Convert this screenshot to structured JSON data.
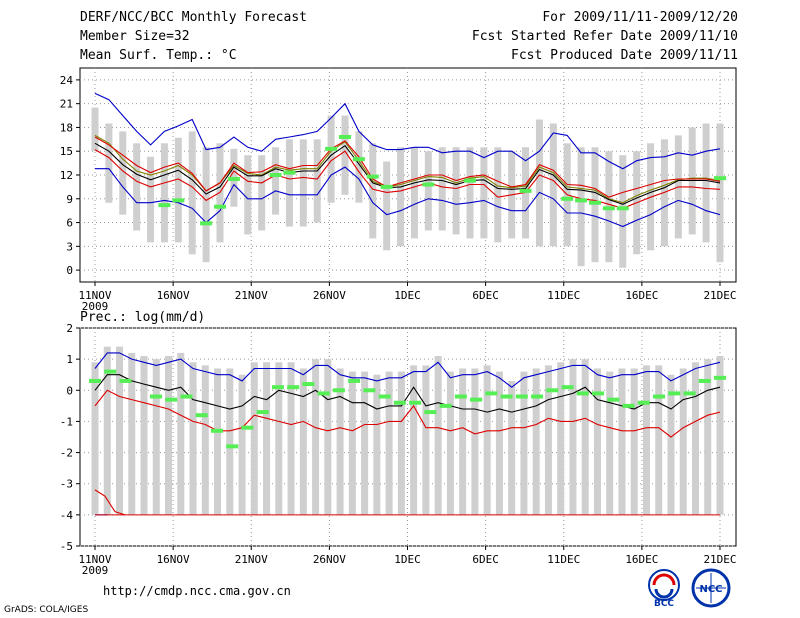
{
  "header": {
    "title": "DERF/NCC/BCC Monthly Forecast",
    "members": "Member Size=32",
    "variable": "Mean Surf. Temp.: °C",
    "period": "For 2009/11/11-2009/12/20",
    "started": "Fcst Started Refer Date 2009/11/10",
    "produced": "Fcst Produced Date 2009/11/11"
  },
  "footer": {
    "url": "http://cmdp.ncc.cma.gov.cn",
    "grads": "GrADS: COLA/IGES",
    "bcc_logo": "BCC",
    "ncc_logo": "NCC"
  },
  "colors": {
    "envelope": "#0000cc",
    "spread": "#dd0000",
    "mean": "#000000",
    "member_box": "#cfcfcf",
    "obs": "#55ee55",
    "olive": "#808000"
  },
  "chart_data": [
    {
      "type": "line",
      "title": "Mean Surf. Temp.: °C",
      "x_labels": [
        "11NOV",
        "16NOV",
        "21NOV",
        "26NOV",
        "1DEC",
        "6DEC",
        "11DEC",
        "16DEC",
        "21DEC"
      ],
      "x_year": "2009",
      "days": 40,
      "ylim": [
        -1.5,
        25.5
      ],
      "yticks": [
        "0",
        "3",
        "6",
        "9",
        "12",
        "15",
        "18",
        "21",
        "24"
      ],
      "series": [
        {
          "name": "max",
          "values": [
            22.3,
            21.5,
            19.5,
            17.5,
            15.8,
            17.5,
            18.2,
            19,
            15.2,
            15.5,
            16.8,
            15.5,
            15,
            16.5,
            16.8,
            17.1,
            17.5,
            19.2,
            21,
            17.5,
            15.8,
            15.2,
            15.2,
            15.5,
            15.5,
            14.8,
            15,
            15,
            14.2,
            15,
            15,
            13.8,
            15,
            17.3,
            17,
            14.8,
            14.8,
            13.7,
            12.8,
            13.8,
            14.2,
            14.3,
            14.8,
            14.5,
            15,
            15.3
          ]
        },
        {
          "name": "hi",
          "values": [
            16.8,
            15.8,
            14.5,
            13.2,
            12.3,
            13,
            13.5,
            12.2,
            10,
            11,
            13.5,
            12.3,
            12.4,
            13.3,
            12.8,
            13.2,
            13.2,
            15.3,
            16.3,
            14.3,
            11.5,
            10.5,
            11,
            11.5,
            12,
            12,
            11.3,
            11.8,
            12,
            11.2,
            10.5,
            10.8,
            13.3,
            12.6,
            10.8,
            10.7,
            10.3,
            9.2,
            9.8,
            10.3,
            10.8,
            11.3,
            11.5,
            11.5,
            11.5,
            11.2
          ]
        },
        {
          "name": "mean",
          "values": [
            16,
            15,
            13.3,
            12.1,
            11.4,
            12,
            12.6,
            11.4,
            9.6,
            10.5,
            13,
            11.9,
            11.9,
            12.8,
            12.3,
            12.5,
            12.5,
            14.5,
            15.7,
            13.4,
            11,
            10.4,
            10.5,
            11,
            11.4,
            11.3,
            10.8,
            11.3,
            11.4,
            10.3,
            10.2,
            10.3,
            12.7,
            12,
            10.2,
            10.1,
            9.8,
            8.9,
            8.3,
            9.1,
            9.8,
            10.4,
            11.3,
            11.3,
            11.3,
            11
          ]
        },
        {
          "name": "lo",
          "values": [
            15.2,
            14.2,
            12.5,
            11.2,
            10.5,
            11,
            11.5,
            10.5,
            8.8,
            9.8,
            12.5,
            11.2,
            11,
            12,
            11.5,
            11.7,
            11.5,
            13.8,
            15,
            12.4,
            10.2,
            9.8,
            10,
            10.5,
            11,
            10.5,
            10.3,
            10.8,
            10.8,
            9.2,
            9.5,
            9.8,
            12,
            11.3,
            9.5,
            9,
            8.8,
            8.3,
            7.8,
            8.5,
            9.2,
            9.8,
            10.5,
            10.5,
            10.3,
            10.2
          ]
        },
        {
          "name": "min",
          "values": [
            12.8,
            12.8,
            10.5,
            8.5,
            8.5,
            8.8,
            8.5,
            7.8,
            6,
            7.5,
            10.8,
            9,
            9,
            10,
            9.5,
            9.5,
            9.5,
            12,
            13,
            11.5,
            8.5,
            7,
            7.5,
            8.3,
            9,
            8.8,
            8.3,
            8.5,
            8.8,
            8,
            7.5,
            7.5,
            9.8,
            9,
            7.2,
            7.2,
            6.8,
            6.2,
            5.5,
            6.3,
            7,
            8,
            8.8,
            8.3,
            7.5,
            7
          ]
        },
        {
          "name": "olive",
          "values": [
            17,
            16,
            14,
            12.5,
            12,
            12.5,
            13.2,
            12,
            10,
            11,
            13.2,
            12.2,
            12,
            13,
            12.6,
            12.8,
            12.8,
            15,
            16.2,
            13.8,
            11.2,
            10.5,
            10.8,
            11.3,
            11.8,
            11.7,
            11,
            11.6,
            11.8,
            10.6,
            10.4,
            10.6,
            13,
            12.3,
            10.5,
            10.3,
            10.1,
            9,
            8.5,
            9.4,
            10.1,
            10.7,
            11.4,
            11.6,
            11.6,
            11.3
          ]
        },
        {
          "name": "obs",
          "values": [
            null,
            null,
            null,
            null,
            null,
            8.2,
            8.8,
            null,
            5.9,
            8,
            11.5,
            null,
            null,
            12,
            12.3,
            null,
            null,
            15.3,
            16.8,
            14,
            11.8,
            10.5,
            null,
            null,
            10.8,
            null,
            null,
            11.3,
            null,
            null,
            null,
            10,
            null,
            null,
            9,
            8.8,
            8.5,
            7.8,
            7.8,
            null,
            null,
            null,
            null,
            null,
            null,
            11.6
          ]
        },
        {
          "name": "box_top",
          "values": [
            20.5,
            18.5,
            17.5,
            null,
            null,
            null,
            null,
            null,
            15.5,
            16,
            null,
            14.5,
            14.5,
            15.5,
            16.5,
            16.5,
            16.5,
            19.5,
            null,
            17.5,
            16,
            null,
            15.5,
            15.5,
            15,
            15.5,
            15.5,
            15.5,
            15.5,
            15.5,
            15,
            15.5,
            19,
            18.5,
            16,
            15.5,
            15.5,
            15,
            14.5,
            15,
            16,
            16.5,
            17,
            18,
            18.5,
            18.5
          ]
        },
        {
          "name": "box_bottom",
          "values": [
            15,
            8.5,
            7,
            5,
            3.5,
            3.5,
            3.5,
            2,
            1,
            3.5,
            8,
            4.5,
            5,
            7,
            5.5,
            5.5,
            6,
            8.5,
            9.5,
            8.5,
            4,
            2.5,
            3,
            4,
            5,
            5,
            4.5,
            4,
            4,
            3.5,
            4,
            4,
            3,
            3,
            3,
            0.5,
            1,
            1,
            0.3,
            2,
            2.5,
            3,
            4,
            4.5,
            3.5,
            1
          ]
        }
      ]
    },
    {
      "type": "line",
      "title": "Prec.: log(mm/d)",
      "x_labels": [
        "11NOV",
        "16NOV",
        "21NOV",
        "26NOV",
        "1DEC",
        "6DEC",
        "11DEC",
        "16DEC",
        "21DEC"
      ],
      "x_year": "2009",
      "days": 40,
      "ylim": [
        -5,
        2
      ],
      "yticks": [
        "-5",
        "-4",
        "-3",
        "-2",
        "-1",
        "0",
        "1",
        "2"
      ],
      "series": [
        {
          "name": "max",
          "values": [
            0.7,
            1.2,
            1.2,
            1,
            0.9,
            0.8,
            0.9,
            1,
            0.7,
            0.6,
            0.5,
            0.5,
            0.3,
            0.7,
            0.7,
            0.7,
            0.7,
            0.5,
            0.8,
            0.8,
            0.5,
            0.4,
            0.4,
            0.3,
            0.4,
            0.4,
            0.6,
            0.6,
            0.9,
            0.4,
            0.5,
            0.5,
            0.6,
            0.4,
            0.1,
            0.4,
            0.5,
            0.6,
            0.7,
            0.8,
            0.8,
            0.5,
            0.4,
            0.5,
            0.5,
            0.6,
            0.6,
            0.3,
            0.5,
            0.7,
            0.8,
            0.9
          ]
        },
        {
          "name": "mean",
          "values": [
            0,
            0.5,
            0.5,
            0.3,
            0.2,
            0.1,
            0,
            0.1,
            -0.3,
            -0.4,
            -0.5,
            -0.6,
            -0.5,
            -0.2,
            -0.3,
            0,
            -0.1,
            -0.2,
            0,
            -0.3,
            -0.2,
            -0.4,
            -0.4,
            -0.6,
            -0.5,
            -0.5,
            0.1,
            -0.5,
            -0.4,
            -0.5,
            -0.6,
            -0.6,
            -0.7,
            -0.6,
            -0.7,
            -0.6,
            -0.5,
            -0.3,
            -0.2,
            -0.1,
            0.1,
            -0.3,
            -0.4,
            -0.5,
            -0.6,
            -0.4,
            -0.4,
            -0.6,
            -0.3,
            -0.2,
            0,
            0.1
          ]
        },
        {
          "name": "lo",
          "values": [
            -0.5,
            0,
            -0.2,
            -0.3,
            -0.4,
            -0.5,
            -0.6,
            -0.8,
            -1,
            -1.1,
            -1.3,
            -1.3,
            -1.2,
            -0.8,
            -0.9,
            -1,
            -1.1,
            -1,
            -1.2,
            -1.3,
            -1.2,
            -1.3,
            -1.1,
            -1.1,
            -1,
            -1,
            -0.5,
            -1.2,
            -1.2,
            -1.3,
            -1.2,
            -1.4,
            -1.3,
            -1.3,
            -1.2,
            -1.2,
            -1.1,
            -0.9,
            -1,
            -1,
            -0.9,
            -1.1,
            -1.2,
            -1.3,
            -1.3,
            -1.2,
            -1.2,
            -1.5,
            -1.2,
            -1,
            -0.8,
            -0.7
          ]
        },
        {
          "name": "min_early",
          "values": [
            -3.2,
            -3.4,
            -3.9,
            -4
          ]
        },
        {
          "name": "obs",
          "values": [
            0.3,
            0.6,
            0.3,
            null,
            -0.2,
            -0.3,
            -0.2,
            -0.8,
            -1.3,
            -1.8,
            -1.2,
            -0.7,
            0.1,
            0.1,
            0.2,
            -0.1,
            0,
            0.3,
            0,
            -0.2,
            -0.4,
            -0.4,
            -0.7,
            -0.5,
            -0.2,
            -0.3,
            -0.1,
            -0.2,
            -0.2,
            -0.2,
            0,
            0.1,
            -0.1,
            -0.1,
            -0.3,
            -0.5,
            -0.4,
            -0.2,
            -0.1,
            -0.1,
            0.3,
            0.4
          ]
        }
      ]
    }
  ]
}
